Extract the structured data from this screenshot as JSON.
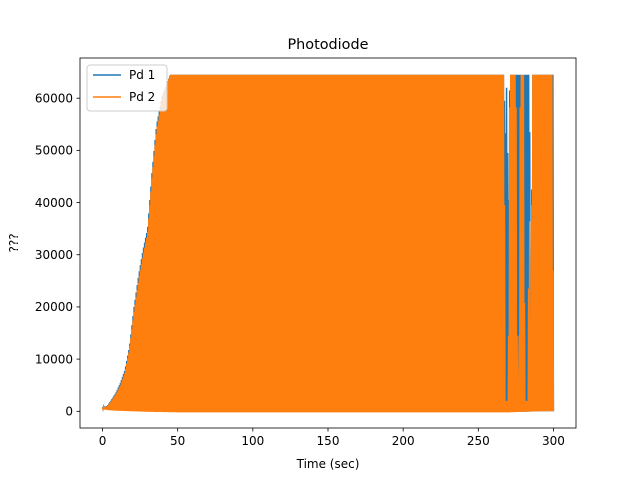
{
  "chart_data": {
    "type": "line",
    "title": "Photodiode",
    "xlabel": "Time (sec)",
    "ylabel": "???",
    "xlim": [
      -15,
      315
    ],
    "ylim": [
      -3200,
      67700
    ],
    "xticks": [
      0,
      50,
      100,
      150,
      200,
      250,
      300
    ],
    "yticks": [
      0,
      10000,
      20000,
      30000,
      40000,
      50000,
      60000
    ],
    "grid": false,
    "legend_position": "top-left",
    "series": [
      {
        "name": "Pd 1",
        "color": "#1f77b4",
        "upper_envelope": {
          "x": [
            0,
            3,
            6,
            9,
            12,
            15,
            18,
            21,
            24,
            27,
            30,
            33,
            36,
            40,
            45,
            50,
            100,
            150,
            200,
            250,
            265,
            267,
            268,
            269,
            270,
            271,
            272,
            275,
            278,
            279,
            280,
            282,
            284,
            285,
            286,
            287,
            290,
            300
          ],
          "y": [
            800,
            1000,
            2200,
            3600,
            5500,
            8000,
            12500,
            20000,
            26000,
            31000,
            35000,
            46000,
            55000,
            60500,
            64500,
            64500,
            64500,
            64500,
            64500,
            64500,
            64500,
            64500,
            52000,
            64500,
            34500,
            64500,
            64500,
            64500,
            64500,
            25000,
            64500,
            64500,
            64500,
            9500,
            64500,
            64500,
            64500,
            64500
          ]
        },
        "lower_envelope": {
          "x": [
            0,
            5,
            10,
            20,
            30,
            50,
            100,
            150,
            200,
            250,
            270,
            280,
            290,
            300
          ],
          "y": [
            500,
            300,
            200,
            100,
            0,
            -100,
            -100,
            -100,
            -100,
            -100,
            -100,
            -100,
            0,
            0
          ]
        }
      },
      {
        "name": "Pd 2",
        "color": "#ff7f0e",
        "upper_envelope": {
          "x": [
            0,
            3,
            6,
            9,
            12,
            15,
            18,
            21,
            24,
            27,
            30,
            33,
            36,
            40,
            45,
            50,
            100,
            150,
            200,
            250,
            266,
            267,
            268,
            270,
            271,
            272,
            275,
            276,
            277,
            278,
            280,
            281,
            282,
            283,
            284,
            285,
            286,
            287,
            290,
            299,
            300
          ],
          "y": [
            700,
            900,
            2000,
            3300,
            5000,
            7500,
            12000,
            19000,
            25000,
            30000,
            34000,
            45000,
            54000,
            60000,
            64500,
            64500,
            64500,
            64500,
            64500,
            64500,
            64500,
            64500,
            2000,
            2000,
            64500,
            64500,
            64500,
            2000,
            2000,
            64500,
            64500,
            2000,
            2000,
            2000,
            45000,
            2000,
            64500,
            64500,
            64500,
            64500,
            2000
          ]
        },
        "lower_envelope": {
          "x": [
            0,
            5,
            10,
            20,
            30,
            50,
            100,
            150,
            200,
            250,
            270,
            280,
            290,
            300
          ],
          "y": [
            400,
            200,
            100,
            0,
            -100,
            -200,
            -200,
            -200,
            -200,
            -200,
            -200,
            -100,
            0,
            0
          ]
        }
      }
    ]
  }
}
